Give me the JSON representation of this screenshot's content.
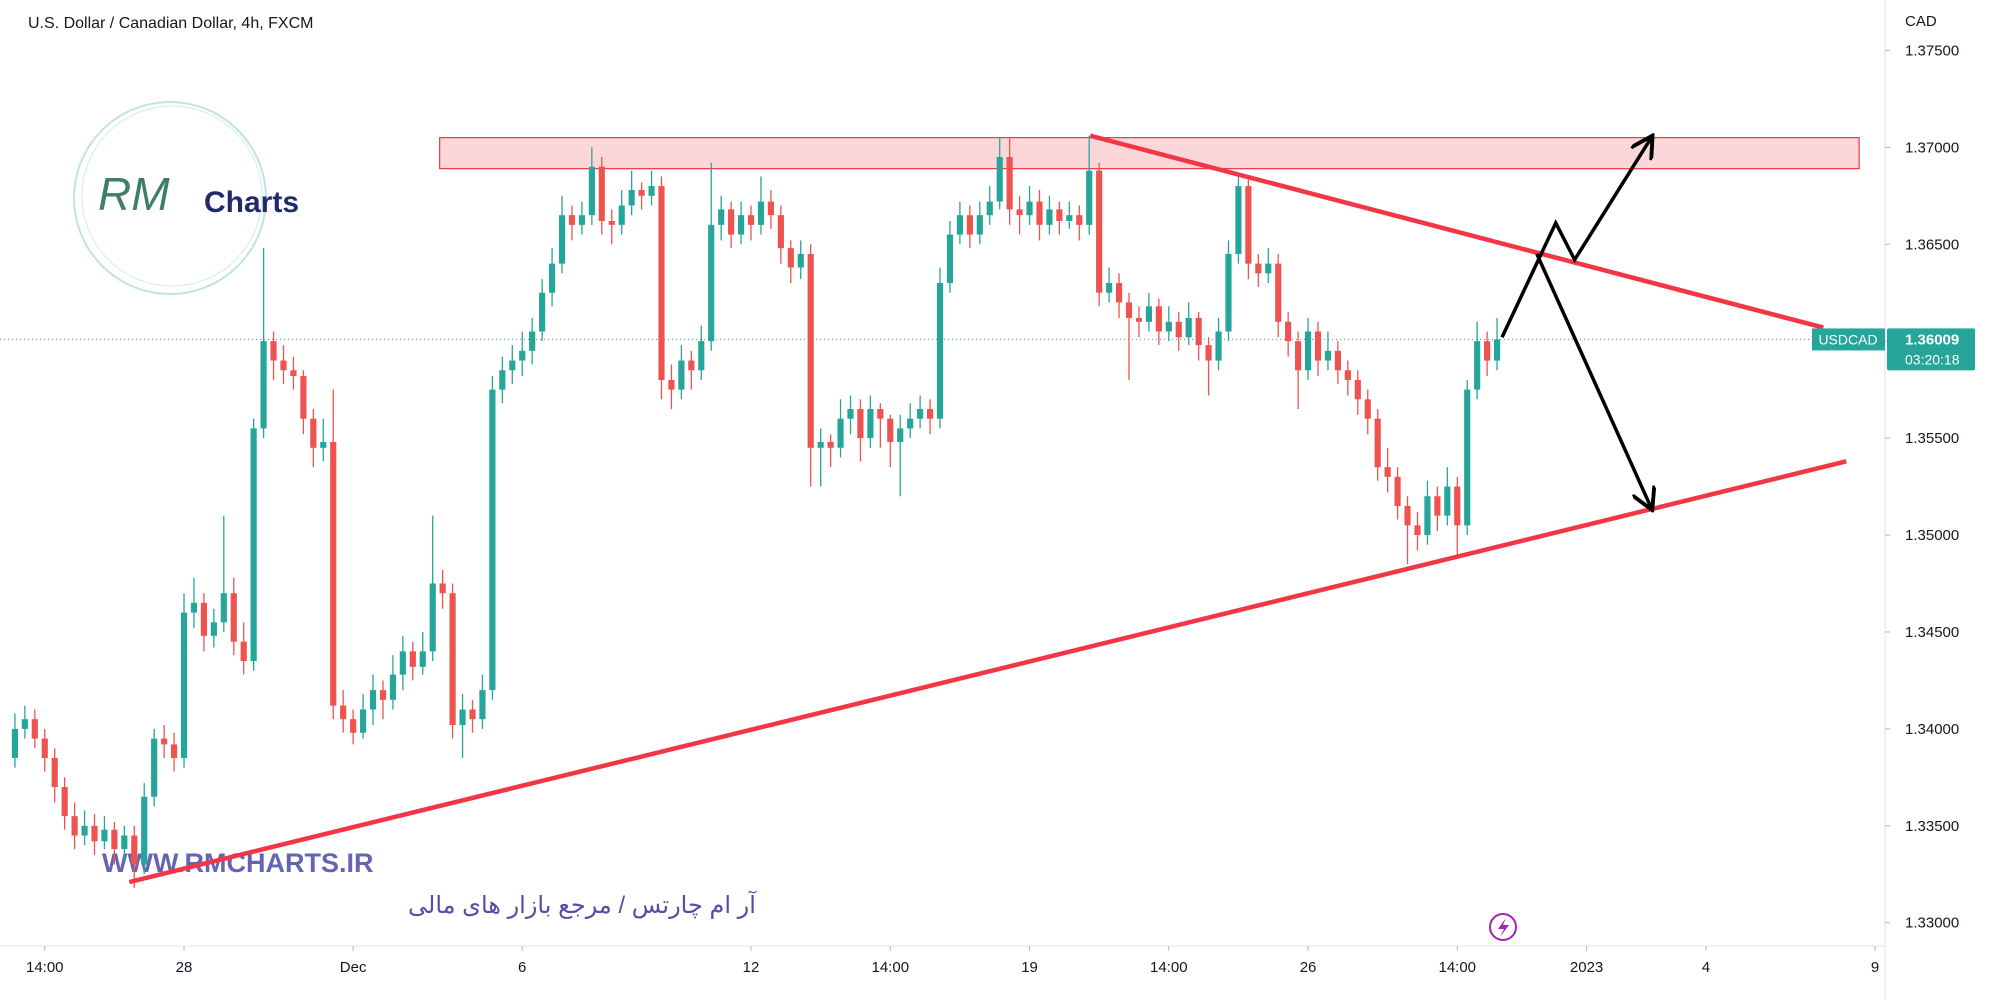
{
  "chart_data": {
    "type": "candlestick",
    "title": "U.S. Dollar / Canadian Dollar, 4h, FXCM",
    "currency_label": "CAD",
    "symbol": "USDCAD",
    "last_price": 1.36009,
    "countdown": "03:20:18",
    "up_color": "#26a69a",
    "down_color": "#ef5350",
    "ohlc": [
      [
        1.3385,
        1.3408,
        1.338,
        1.34
      ],
      [
        1.34,
        1.3412,
        1.3395,
        1.3405
      ],
      [
        1.3405,
        1.341,
        1.339,
        1.3395
      ],
      [
        1.3395,
        1.34,
        1.3378,
        1.3385
      ],
      [
        1.3385,
        1.339,
        1.3362,
        1.337
      ],
      [
        1.337,
        1.3375,
        1.3348,
        1.3355
      ],
      [
        1.3355,
        1.3362,
        1.3338,
        1.3345
      ],
      [
        1.3345,
        1.3358,
        1.334,
        1.335
      ],
      [
        1.335,
        1.3356,
        1.3335,
        1.3342
      ],
      [
        1.3342,
        1.3355,
        1.3338,
        1.3348
      ],
      [
        1.3348,
        1.3352,
        1.333,
        1.3338
      ],
      [
        1.3338,
        1.335,
        1.3332,
        1.3345
      ],
      [
        1.3345,
        1.335,
        1.3318,
        1.333
      ],
      [
        1.333,
        1.3372,
        1.3325,
        1.3365
      ],
      [
        1.3365,
        1.34,
        1.336,
        1.3395
      ],
      [
        1.3395,
        1.3402,
        1.3385,
        1.3392
      ],
      [
        1.3392,
        1.3398,
        1.3378,
        1.3385
      ],
      [
        1.3385,
        1.347,
        1.338,
        1.346
      ],
      [
        1.346,
        1.3478,
        1.3452,
        1.3465
      ],
      [
        1.3465,
        1.347,
        1.344,
        1.3448
      ],
      [
        1.3448,
        1.3462,
        1.3442,
        1.3455
      ],
      [
        1.3455,
        1.351,
        1.345,
        1.347
      ],
      [
        1.347,
        1.3478,
        1.3438,
        1.3445
      ],
      [
        1.3445,
        1.3455,
        1.3428,
        1.3435
      ],
      [
        1.3435,
        1.356,
        1.343,
        1.3555
      ],
      [
        1.3555,
        1.3648,
        1.355,
        1.36
      ],
      [
        1.36,
        1.3605,
        1.358,
        1.359
      ],
      [
        1.359,
        1.3598,
        1.3578,
        1.3585
      ],
      [
        1.3585,
        1.3592,
        1.3575,
        1.3582
      ],
      [
        1.3582,
        1.3585,
        1.3552,
        1.356
      ],
      [
        1.356,
        1.3565,
        1.3535,
        1.3545
      ],
      [
        1.3545,
        1.356,
        1.3538,
        1.3548
      ],
      [
        1.3548,
        1.3575,
        1.3405,
        1.3412
      ],
      [
        1.3412,
        1.342,
        1.3398,
        1.3405
      ],
      [
        1.3405,
        1.341,
        1.3392,
        1.3398
      ],
      [
        1.3398,
        1.3418,
        1.3395,
        1.341
      ],
      [
        1.341,
        1.3428,
        1.3402,
        1.342
      ],
      [
        1.342,
        1.3425,
        1.3405,
        1.3415
      ],
      [
        1.3415,
        1.3438,
        1.341,
        1.3428
      ],
      [
        1.3428,
        1.3448,
        1.342,
        1.344
      ],
      [
        1.344,
        1.3445,
        1.3425,
        1.3432
      ],
      [
        1.3432,
        1.345,
        1.3428,
        1.344
      ],
      [
        1.344,
        1.351,
        1.3435,
        1.3475
      ],
      [
        1.3475,
        1.3482,
        1.3462,
        1.347
      ],
      [
        1.347,
        1.3475,
        1.3395,
        1.3402
      ],
      [
        1.3402,
        1.3418,
        1.3385,
        1.341
      ],
      [
        1.341,
        1.3415,
        1.3398,
        1.3405
      ],
      [
        1.3405,
        1.3428,
        1.34,
        1.342
      ],
      [
        1.342,
        1.3582,
        1.3415,
        1.3575
      ],
      [
        1.3575,
        1.3592,
        1.3568,
        1.3585
      ],
      [
        1.3585,
        1.3598,
        1.3578,
        1.359
      ],
      [
        1.359,
        1.3605,
        1.3582,
        1.3595
      ],
      [
        1.3595,
        1.3612,
        1.3588,
        1.3605
      ],
      [
        1.3605,
        1.3632,
        1.36,
        1.3625
      ],
      [
        1.3625,
        1.3648,
        1.3618,
        1.364
      ],
      [
        1.364,
        1.3675,
        1.3635,
        1.3665
      ],
      [
        1.3665,
        1.367,
        1.3652,
        1.366
      ],
      [
        1.366,
        1.3672,
        1.3655,
        1.3665
      ],
      [
        1.3665,
        1.37,
        1.366,
        1.369
      ],
      [
        1.369,
        1.3695,
        1.3655,
        1.3662
      ],
      [
        1.3662,
        1.3668,
        1.365,
        1.366
      ],
      [
        1.366,
        1.3678,
        1.3655,
        1.367
      ],
      [
        1.367,
        1.3688,
        1.3665,
        1.3678
      ],
      [
        1.3678,
        1.3682,
        1.3668,
        1.3675
      ],
      [
        1.3675,
        1.3688,
        1.367,
        1.368
      ],
      [
        1.368,
        1.3685,
        1.357,
        1.358
      ],
      [
        1.358,
        1.3588,
        1.3565,
        1.3575
      ],
      [
        1.3575,
        1.3598,
        1.357,
        1.359
      ],
      [
        1.359,
        1.3595,
        1.3575,
        1.3585
      ],
      [
        1.3585,
        1.3608,
        1.358,
        1.36
      ],
      [
        1.36,
        1.3692,
        1.3595,
        1.366
      ],
      [
        1.366,
        1.3675,
        1.3652,
        1.3668
      ],
      [
        1.3668,
        1.3672,
        1.3648,
        1.3655
      ],
      [
        1.3655,
        1.3672,
        1.365,
        1.3665
      ],
      [
        1.3665,
        1.367,
        1.3652,
        1.366
      ],
      [
        1.366,
        1.3685,
        1.3655,
        1.3672
      ],
      [
        1.3672,
        1.3678,
        1.3658,
        1.3665
      ],
      [
        1.3665,
        1.367,
        1.364,
        1.3648
      ],
      [
        1.3648,
        1.3652,
        1.363,
        1.3638
      ],
      [
        1.3638,
        1.3652,
        1.3632,
        1.3645
      ],
      [
        1.3645,
        1.365,
        1.3525,
        1.3545
      ],
      [
        1.3545,
        1.3555,
        1.3525,
        1.3548
      ],
      [
        1.3548,
        1.3552,
        1.3535,
        1.3545
      ],
      [
        1.3545,
        1.357,
        1.354,
        1.356
      ],
      [
        1.356,
        1.3572,
        1.3552,
        1.3565
      ],
      [
        1.3565,
        1.357,
        1.3538,
        1.355
      ],
      [
        1.355,
        1.3572,
        1.3545,
        1.3565
      ],
      [
        1.3565,
        1.3568,
        1.3545,
        1.356
      ],
      [
        1.356,
        1.3562,
        1.3535,
        1.3548
      ],
      [
        1.3548,
        1.3562,
        1.352,
        1.3555
      ],
      [
        1.3555,
        1.3568,
        1.355,
        1.356
      ],
      [
        1.356,
        1.3572,
        1.3555,
        1.3565
      ],
      [
        1.3565,
        1.357,
        1.3552,
        1.356
      ],
      [
        1.356,
        1.3638,
        1.3555,
        1.363
      ],
      [
        1.363,
        1.3662,
        1.3625,
        1.3655
      ],
      [
        1.3655,
        1.3672,
        1.365,
        1.3665
      ],
      [
        1.3665,
        1.367,
        1.3648,
        1.3655
      ],
      [
        1.3655,
        1.3672,
        1.365,
        1.3665
      ],
      [
        1.3665,
        1.368,
        1.366,
        1.3672
      ],
      [
        1.3672,
        1.3705,
        1.3668,
        1.3695
      ],
      [
        1.3695,
        1.3705,
        1.366,
        1.3668
      ],
      [
        1.3668,
        1.3675,
        1.3655,
        1.3665
      ],
      [
        1.3665,
        1.368,
        1.366,
        1.3672
      ],
      [
        1.3672,
        1.3678,
        1.3652,
        1.366
      ],
      [
        1.366,
        1.3675,
        1.3655,
        1.3668
      ],
      [
        1.3668,
        1.3672,
        1.3655,
        1.3662
      ],
      [
        1.3662,
        1.3672,
        1.3658,
        1.3665
      ],
      [
        1.3665,
        1.367,
        1.3652,
        1.366
      ],
      [
        1.366,
        1.3706,
        1.3655,
        1.3688
      ],
      [
        1.3688,
        1.3692,
        1.3618,
        1.3625
      ],
      [
        1.3625,
        1.3638,
        1.362,
        1.363
      ],
      [
        1.363,
        1.3635,
        1.3612,
        1.362
      ],
      [
        1.362,
        1.3625,
        1.358,
        1.3612
      ],
      [
        1.3612,
        1.3618,
        1.3602,
        1.361
      ],
      [
        1.361,
        1.3625,
        1.3605,
        1.3618
      ],
      [
        1.3618,
        1.3622,
        1.3598,
        1.3605
      ],
      [
        1.3605,
        1.3618,
        1.36,
        1.361
      ],
      [
        1.361,
        1.3615,
        1.3595,
        1.3602
      ],
      [
        1.3602,
        1.362,
        1.3598,
        1.3612
      ],
      [
        1.3612,
        1.3615,
        1.359,
        1.3598
      ],
      [
        1.3598,
        1.3602,
        1.3572,
        1.359
      ],
      [
        1.359,
        1.3612,
        1.3585,
        1.3605
      ],
      [
        1.3605,
        1.3652,
        1.36,
        1.3645
      ],
      [
        1.3645,
        1.3685,
        1.364,
        1.368
      ],
      [
        1.368,
        1.3685,
        1.3632,
        1.364
      ],
      [
        1.364,
        1.3645,
        1.3628,
        1.3635
      ],
      [
        1.3635,
        1.3648,
        1.363,
        1.364
      ],
      [
        1.364,
        1.3645,
        1.3602,
        1.361
      ],
      [
        1.361,
        1.3615,
        1.3592,
        1.36
      ],
      [
        1.36,
        1.3605,
        1.3565,
        1.3585
      ],
      [
        1.3585,
        1.3612,
        1.358,
        1.3605
      ],
      [
        1.3605,
        1.361,
        1.3582,
        1.359
      ],
      [
        1.359,
        1.3605,
        1.3585,
        1.3595
      ],
      [
        1.3595,
        1.36,
        1.3578,
        1.3585
      ],
      [
        1.3585,
        1.359,
        1.3572,
        1.358
      ],
      [
        1.358,
        1.3585,
        1.3562,
        1.357
      ],
      [
        1.357,
        1.3575,
        1.3552,
        1.356
      ],
      [
        1.356,
        1.3565,
        1.3528,
        1.3535
      ],
      [
        1.3535,
        1.3545,
        1.3522,
        1.353
      ],
      [
        1.353,
        1.3535,
        1.3508,
        1.3515
      ],
      [
        1.3515,
        1.352,
        1.3485,
        1.3505
      ],
      [
        1.3505,
        1.3512,
        1.3492,
        1.35
      ],
      [
        1.35,
        1.3528,
        1.3495,
        1.352
      ],
      [
        1.352,
        1.3525,
        1.3502,
        1.351
      ],
      [
        1.351,
        1.3535,
        1.3505,
        1.3525
      ],
      [
        1.3525,
        1.353,
        1.3488,
        1.3505
      ],
      [
        1.3505,
        1.358,
        1.35,
        1.3575
      ],
      [
        1.3575,
        1.361,
        1.357,
        1.36
      ],
      [
        1.36,
        1.3605,
        1.3582,
        1.359
      ],
      [
        1.359,
        1.3612,
        1.3585,
        1.36009
      ]
    ],
    "xlim": [
      -1.5,
      188
    ],
    "xticks": [
      {
        "value": 3,
        "label": "14:00"
      },
      {
        "value": 17,
        "label": "28"
      },
      {
        "value": 34,
        "label": "Dec"
      },
      {
        "value": 51,
        "label": "6"
      },
      {
        "value": 74,
        "label": "12"
      },
      {
        "value": 88,
        "label": "14:00"
      },
      {
        "value": 102,
        "label": "19"
      },
      {
        "value": 116,
        "label": "14:00"
      },
      {
        "value": 130,
        "label": "26"
      },
      {
        "value": 145,
        "label": "14:00"
      },
      {
        "value": 158,
        "label": "2023"
      },
      {
        "value": 170,
        "label": "4"
      },
      {
        "value": 187,
        "label": "9"
      }
    ],
    "ylim": [
      1.3288,
      1.3776
    ],
    "yticks": [
      {
        "value": 1.33,
        "label": "1.33000"
      },
      {
        "value": 1.335,
        "label": "1.33500"
      },
      {
        "value": 1.34,
        "label": "1.34000"
      },
      {
        "value": 1.345,
        "label": "1.34500"
      },
      {
        "value": 1.35,
        "label": "1.35000"
      },
      {
        "value": 1.355,
        "label": "1.35500"
      },
      {
        "value": 1.36,
        "label": "1.36000"
      },
      {
        "value": 1.365,
        "label": "1.36500"
      },
      {
        "value": 1.37,
        "label": "1.37000"
      },
      {
        "value": 1.375,
        "label": "1.37500"
      }
    ],
    "trendlines": [
      {
        "x": [
          11.5,
          184.1
        ],
        "y": [
          1.3321,
          1.3538
        ],
        "color": "#f23645"
      },
      {
        "x": [
          108.1,
          181.8
        ],
        "y": [
          1.3706,
          1.3607
        ],
        "color": "#f23645"
      }
    ],
    "zone": {
      "x": [
        42.7,
        185.4
      ],
      "y": [
        1.3689,
        1.3705
      ],
      "color": "#f23645"
    },
    "projections": [
      {
        "x": [
          149.5,
          154.9,
          156.8,
          164.5
        ],
        "y": [
          1.3602,
          1.3661,
          1.3642,
          1.3705
        ]
      },
      {
        "x": [
          153,
          164.5
        ],
        "y": [
          1.3645,
          1.3514
        ]
      }
    ]
  },
  "watermark": {
    "logo_mark": "RM",
    "logo": "Charts",
    "site": "WWW.RMCHARTS.IR",
    "tagline": "آر ام چارتس / مرجع بازار های مالی"
  }
}
